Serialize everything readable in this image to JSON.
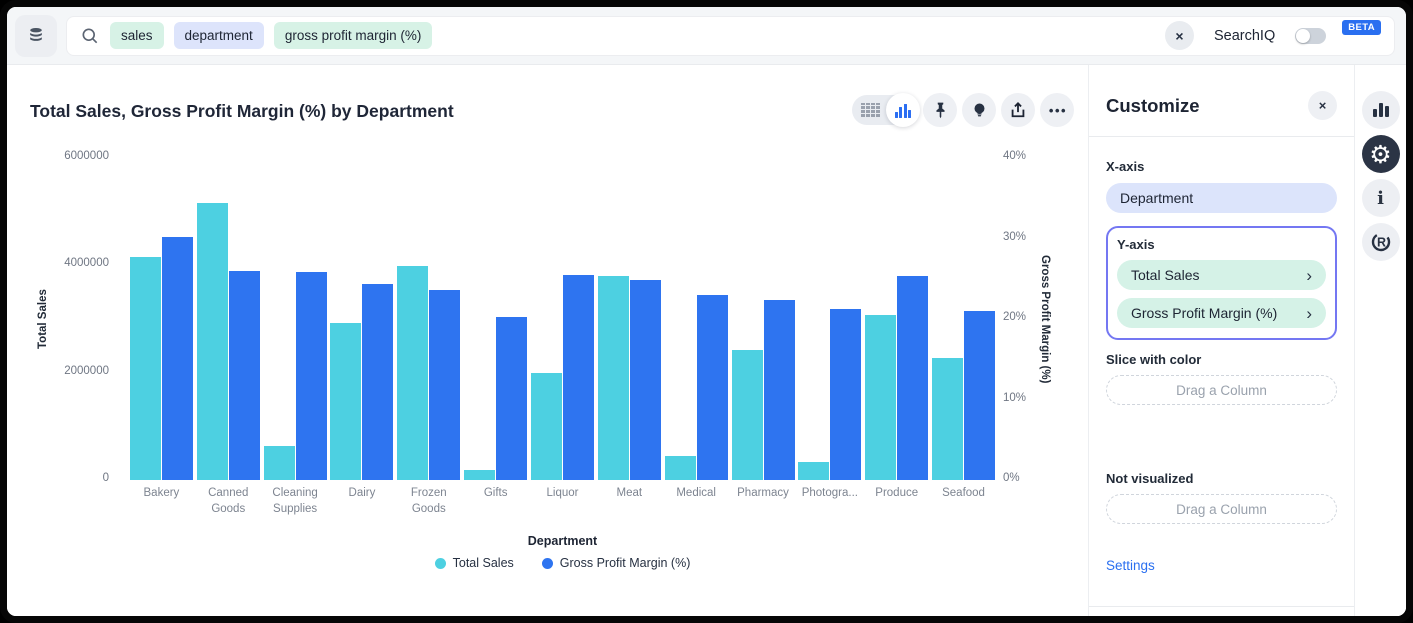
{
  "topbar": {
    "search_tokens": [
      {
        "text": "sales",
        "type": "measure"
      },
      {
        "text": "department",
        "type": "attribute"
      },
      {
        "text": "gross profit margin (%)",
        "type": "measure"
      }
    ],
    "searchiq_label": "SearchIQ",
    "searchiq_toggle_state": "off",
    "beta_badge": "BETA"
  },
  "chart_data": {
    "type": "bar",
    "title": "Total Sales, Gross Profit Margin (%) by Department",
    "categories": [
      "Bakery",
      "Canned Goods",
      "Cleaning Supplies",
      "Dairy",
      "Frozen Goods",
      "Gifts",
      "Liquor",
      "Meat",
      "Medical",
      "Pharmacy",
      "Photogra...",
      "Produce",
      "Seafood"
    ],
    "series": [
      {
        "name": "Total Sales",
        "axis": "left",
        "color": "#4DD0E1",
        "values": [
          4150000,
          5160000,
          630000,
          2930000,
          3990000,
          190000,
          2000000,
          3810000,
          450000,
          2420000,
          340000,
          3080000,
          2270000
        ]
      },
      {
        "name": "Gross Profit Margin (%)",
        "axis": "right",
        "color": "#2E74F0",
        "values": [
          30.2,
          26.0,
          25.9,
          24.3,
          23.6,
          20.3,
          25.5,
          24.8,
          23.0,
          22.4,
          21.3,
          25.4,
          21.0
        ]
      }
    ],
    "left_axis": {
      "title": "Total Sales",
      "max": 6000000,
      "ticks": [
        {
          "label": "0",
          "value": 0
        },
        {
          "label": "2000000",
          "value": 2000000
        },
        {
          "label": "4000000",
          "value": 4000000
        },
        {
          "label": "6000000",
          "value": 6000000
        }
      ]
    },
    "right_axis": {
      "title": "Gross Profit Margin (%)",
      "max": 40,
      "ticks": [
        {
          "label": "0%",
          "value": 0
        },
        {
          "label": "10%",
          "value": 10
        },
        {
          "label": "20%",
          "value": 20
        },
        {
          "label": "30%",
          "value": 30
        },
        {
          "label": "40%",
          "value": 40
        }
      ]
    },
    "xlabel": "Department",
    "legend": [
      "Total Sales",
      "Gross Profit Margin (%)"
    ],
    "grid": false,
    "legend_position": "bottom"
  },
  "customize": {
    "title": "Customize",
    "x_axis_label": "X-axis",
    "x_axis_value": "Department",
    "y_axis_label": "Y-axis",
    "y_axis_items": [
      "Total Sales",
      "Gross Profit Margin (%)"
    ],
    "slice_label": "Slice with color",
    "slice_placeholder": "Drag a Column",
    "not_visualized_label": "Not visualized",
    "not_visualized_placeholder": "Drag a Column",
    "settings_label": "Settings"
  },
  "icons": {
    "ellipsis": "•••",
    "close": "×",
    "chevron_right": "›",
    "gear": "⚙",
    "info": "i",
    "r_logo": "R"
  },
  "colors": {
    "series_teal": "#4DD0E1",
    "series_blue": "#2E74F0",
    "chip_mint": "#D7F2E6",
    "chip_lavender": "#DDE4FB",
    "highlight_border": "#7477F2",
    "link_blue": "#2A6FF0",
    "beta_badge_blue": "#2A6FF0",
    "dark_text": "#1D2433",
    "topbar_bg": "#F4F6F8"
  }
}
